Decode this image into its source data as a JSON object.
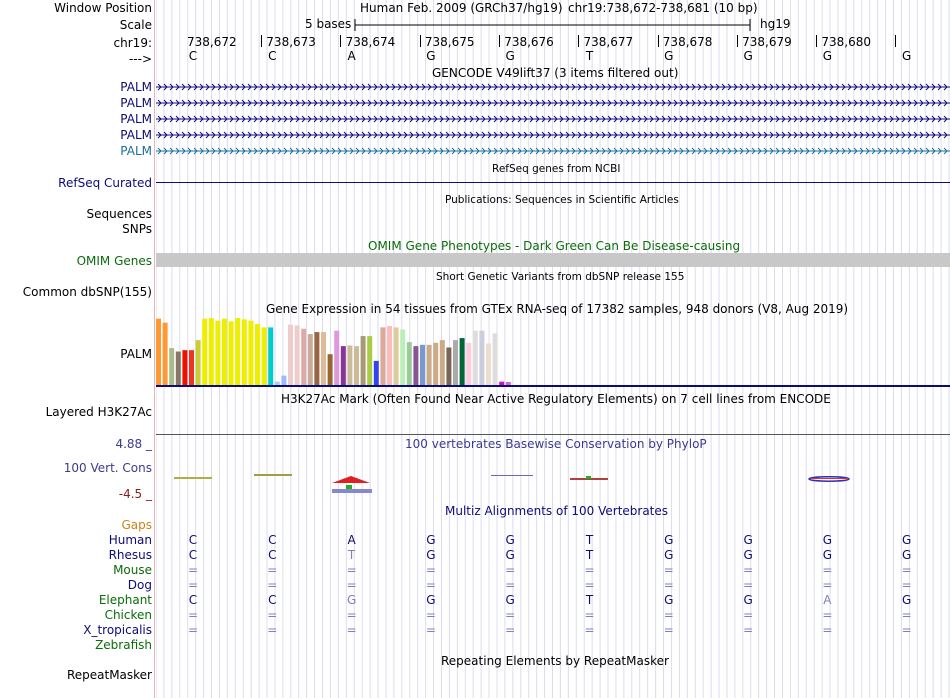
{
  "header": {
    "window_position_label": "Window Position",
    "scale_label": "Scale",
    "chrom_label": "chr19:",
    "strand_label": "--->",
    "assembly": "Human Feb. 2009 (GRCh37/hg19)",
    "region": "chr19:738,672-738,681 (10 bp)",
    "scale_text": "5 bases",
    "scale_db": "hg19",
    "positions": [
      "738,672",
      "738,673",
      "738,674",
      "738,675",
      "738,676",
      "738,677",
      "738,678",
      "738,679",
      "738,680"
    ],
    "bases": [
      "C",
      "C",
      "A",
      "G",
      "G",
      "T",
      "G",
      "G",
      "G",
      "G"
    ]
  },
  "tracks": {
    "gencode": {
      "title": "GENCODE V49lift37 (3 items filtered out)",
      "items": [
        "PALM",
        "PALM",
        "PALM",
        "PALM",
        "PALM"
      ],
      "colors": [
        "#0c0c78",
        "#0c0c78",
        "#0c0c78",
        "#0c0c78",
        "#1c6e9e"
      ]
    },
    "refseq": {
      "title": "RefSeq genes from NCBI",
      "label": "RefSeq Curated",
      "color": "#0c0c78"
    },
    "publications": {
      "title": "Publications: Sequences in Scientific Articles",
      "labels": [
        "Sequences",
        "SNPs"
      ]
    },
    "omim": {
      "title": "OMIM Gene Phenotypes - Dark Green Can Be Disease-causing",
      "label": "OMIM Genes",
      "color": "#0b6b0b"
    },
    "dbsnp": {
      "title": "Short Genetic Variants from dbSNP release 155",
      "label": "Common dbSNP(155)"
    },
    "gtex": {
      "title": "Gene Expression in 54 tissues from GTEx RNA-seq of 17382 samples, 948 donors (V8, Aug 2019)",
      "label": "PALM",
      "bars": [
        0.99,
        0.93,
        0.55,
        0.5,
        0.52,
        0.52,
        0.67,
        0.99,
        1.0,
        0.96,
        0.99,
        0.95,
        1.0,
        0.98,
        0.96,
        0.91,
        0.86,
        0.86,
        0.05,
        0.14,
        0.9,
        0.89,
        0.84,
        0.76,
        0.79,
        0.79,
        0.46,
        0.81,
        0.58,
        0.59,
        0.58,
        0.73,
        0.73,
        0.36,
        0.86,
        0.88,
        0.86,
        0.83,
        0.64,
        0.58,
        0.6,
        0.6,
        0.63,
        0.67,
        0.56,
        0.67,
        0.7,
        0.63,
        0.81,
        0.81,
        0.62,
        0.77,
        0.05,
        0.0
      ],
      "colors": [
        "#ff9933",
        "#ff9933",
        "#aabb88",
        "#887766",
        "#ee1100",
        "#ee3322",
        "#cccc33",
        "#eeee00",
        "#eeee00",
        "#eeee00",
        "#eeee00",
        "#eeee00",
        "#eeee00",
        "#eeee00",
        "#eeee00",
        "#eeee00",
        "#eeee00",
        "#00cccc",
        "#aaccee",
        "#99bbff",
        "#eecccc",
        "#eecccc",
        "#ddaaaa",
        "#ccaa99",
        "#996644",
        "#ddbb99",
        "#996633",
        "#dd99dd",
        "#883399",
        "#ccbb99",
        "#ccbb99",
        "#aa9977",
        "#aacc44",
        "#3344ee",
        "#ddaa99",
        "#ffbbbb",
        "#ddcc99",
        "#bbeebb",
        "#99cc99",
        "#885599",
        "#7799cc",
        "#ccaa88",
        "#ccaa88",
        "#ccaa88",
        "#776655",
        "#aaaaaa",
        "#006633",
        "#ffccdd",
        "#dddddd",
        "#ccccdd",
        "#eeddcc",
        "#dddddd",
        "#cc11cc",
        "#cc66dd"
      ]
    },
    "h3k27ac": {
      "title": "H3K27Ac Mark (Often Found Near Active Regulatory Elements) on 7 cell lines from ENCODE",
      "label": "Layered H3K27Ac"
    },
    "phylop": {
      "title": "100 vertebrates Basewise Conservation by PhyloP",
      "label": "100 Vert. Cons",
      "max_label": "4.88 _",
      "min_label": "-4.5 _",
      "color": "#3a3a90"
    },
    "multiz": {
      "title": "Multiz Alignments of 100 Vertebrates",
      "gaps_label": "Gaps",
      "species": [
        {
          "name": "Human",
          "color": "#0c0c78",
          "bases": [
            "C",
            "C",
            "A",
            "G",
            "G",
            "T",
            "G",
            "G",
            "G",
            "G"
          ]
        },
        {
          "name": "Rhesus",
          "color": "#0c0c78",
          "bases": [
            "C",
            "C",
            "T",
            "G",
            "G",
            "T",
            "G",
            "G",
            "G",
            "G"
          ]
        },
        {
          "name": "Mouse",
          "color": "#0b6b0b",
          "bases": [
            "=",
            "=",
            "=",
            "=",
            "=",
            "=",
            "=",
            "=",
            "=",
            "="
          ]
        },
        {
          "name": "Dog",
          "color": "#0c0c78",
          "bases": [
            "=",
            "=",
            "=",
            "=",
            "=",
            "=",
            "=",
            "=",
            "=",
            "="
          ]
        },
        {
          "name": "Elephant",
          "color": "#0b6b0b",
          "bases": [
            "C",
            "C",
            "G",
            "G",
            "G",
            "T",
            "G",
            "G",
            "A",
            "G"
          ]
        },
        {
          "name": "Chicken",
          "color": "#0b6b0b",
          "bases": [
            "=",
            "=",
            "=",
            "=",
            "=",
            "=",
            "=",
            "=",
            "=",
            "="
          ]
        },
        {
          "name": "X_tropicalis",
          "color": "#0c0c78",
          "bases": [
            "=",
            "=",
            "=",
            "=",
            "=",
            "=",
            "=",
            "=",
            "=",
            "="
          ]
        },
        {
          "name": "Zebrafish",
          "color": "#0b6b0b",
          "bases": [
            "",
            "",
            "",
            "",
            "",
            "",
            "",
            "",
            "",
            ""
          ]
        }
      ]
    },
    "repeatmasker": {
      "title": "Repeating Elements by RepeatMasker",
      "label": "RepeatMasker"
    }
  }
}
